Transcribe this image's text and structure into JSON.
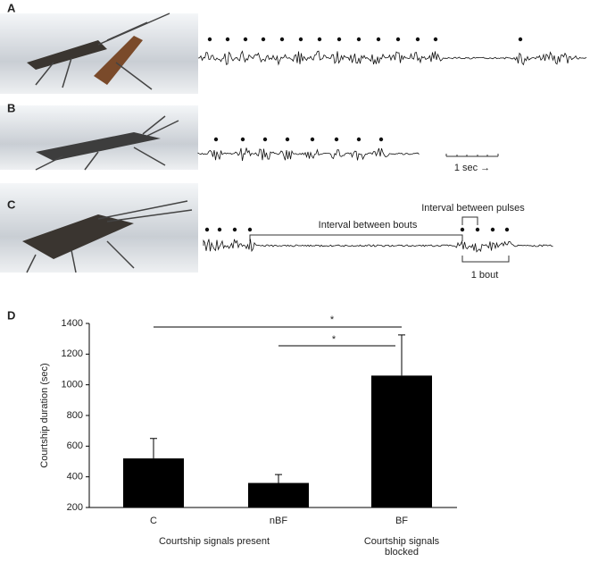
{
  "panel_labels": [
    "A",
    "B",
    "C",
    "D"
  ],
  "scale_bar": "1 sec →",
  "annotations": {
    "interval_between_bouts": "Interval between bouts",
    "interval_between_pulses": "Interval between pulses",
    "one_bout": "1 bout"
  },
  "chart_data": {
    "type": "bar",
    "y_label": "Courtship duration (sec)",
    "categories": [
      "C",
      "nBF",
      "BF"
    ],
    "values": [
      520,
      360,
      1060
    ],
    "errors": [
      130,
      55,
      265
    ],
    "color": "#000000",
    "ylim": [
      200,
      1400
    ],
    "yticks": [
      200,
      400,
      600,
      800,
      1000,
      1200,
      1400
    ],
    "groups": [
      "Courtship signals present",
      "Courtship signals blocked"
    ],
    "significance": [
      "*",
      "*"
    ]
  }
}
